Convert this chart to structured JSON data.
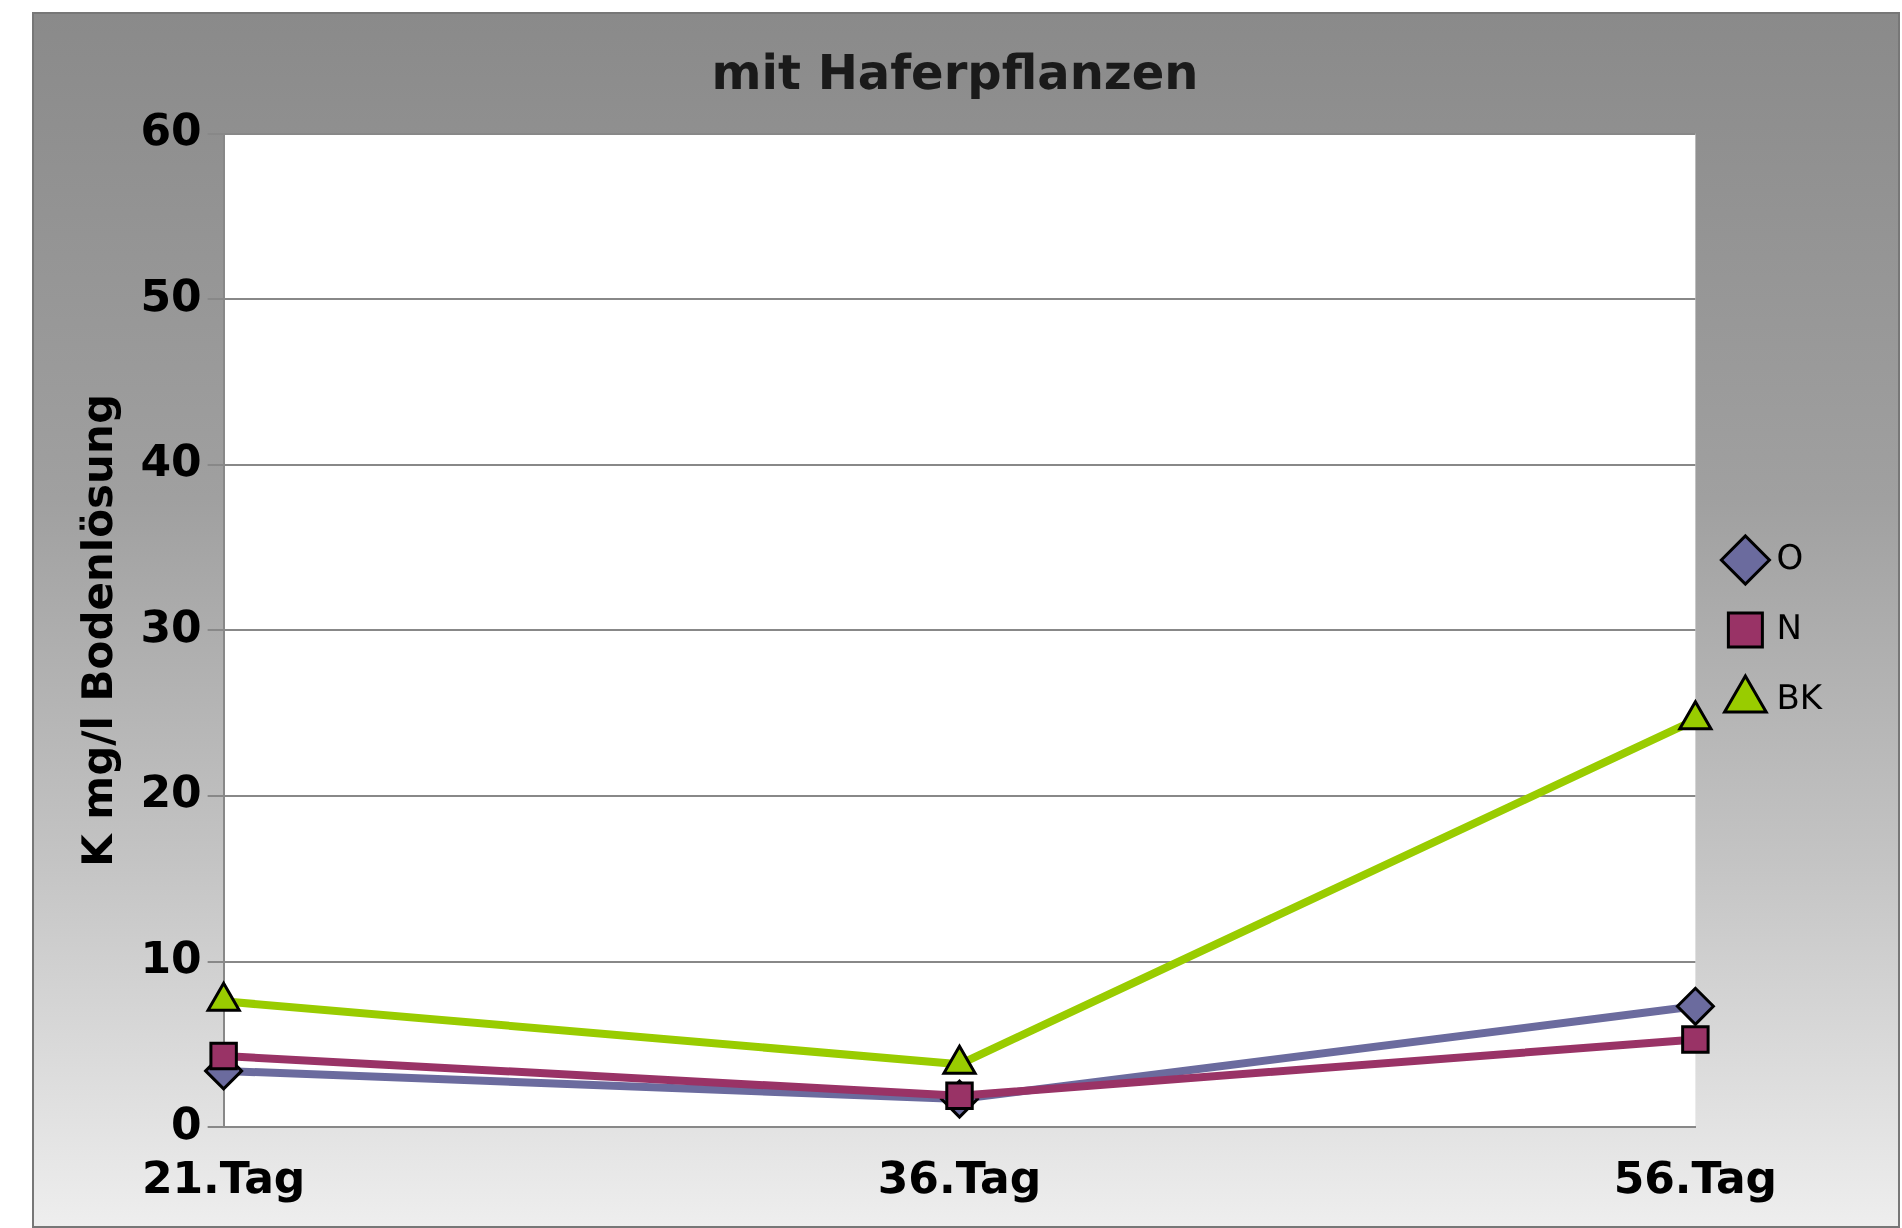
{
  "chart_data": {
    "type": "line",
    "title": "mit Haferpflanzen",
    "ylabel": "K mg/l Bodenlösung",
    "categories": [
      "21.Tag",
      "36.Tag",
      "56.Tag"
    ],
    "series": [
      {
        "name": "O",
        "color": "#6b6b9e",
        "marker": "diamond",
        "values": [
          3.4,
          1.7,
          7.3
        ]
      },
      {
        "name": "N",
        "color": "#993366",
        "marker": "square",
        "values": [
          4.3,
          1.9,
          5.3
        ]
      },
      {
        "name": "BK",
        "color": "#99cc00",
        "marker": "triangle",
        "values": [
          7.6,
          3.8,
          24.6
        ]
      }
    ],
    "ylim": [
      0,
      60
    ],
    "yticks": [
      0,
      10,
      20,
      30,
      40,
      50,
      60
    ],
    "grid": "y",
    "legend": "right"
  }
}
